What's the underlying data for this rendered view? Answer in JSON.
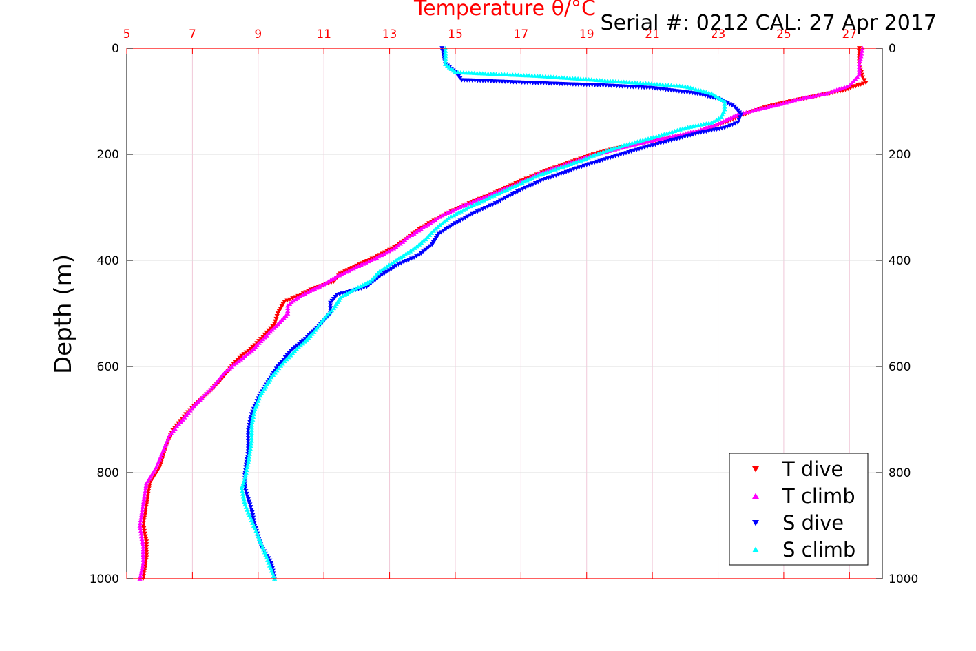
{
  "chart_data": {
    "type": "scatter",
    "title": "Temperature θ/°C",
    "annotation": "Serial #: 0212  CAL: 27 Apr 2017",
    "ylabel": "Depth (m)",
    "xlabel": "Temperature θ/°C",
    "xlim": [
      5,
      28
    ],
    "ylim": [
      0,
      1000
    ],
    "y_reversed": true,
    "x_axis_position": "top",
    "x_axis_color": "#ff0000",
    "xticks": [
      5,
      7,
      9,
      11,
      13,
      15,
      17,
      19,
      21,
      23,
      25,
      27
    ],
    "xtick_labels": [
      "5",
      "7",
      "9",
      "11",
      "13",
      "15",
      "17",
      "19",
      "21",
      "23",
      "25",
      "27"
    ],
    "yticks": [
      0,
      200,
      400,
      600,
      800,
      1000
    ],
    "ytick_labels": [
      "0",
      "200",
      "400",
      "600",
      "800",
      "1000"
    ],
    "grid": true,
    "legend_position": "bottom-right",
    "series": [
      {
        "name": "T dive",
        "color": "#ff0000",
        "marker": "triangle-down",
        "points": [
          [
            27.3,
            0
          ],
          [
            27.3,
            30
          ],
          [
            27.4,
            55
          ],
          [
            27.5,
            65
          ],
          [
            26.8,
            80
          ],
          [
            26.0,
            90
          ],
          [
            25.2,
            100
          ],
          [
            24.5,
            110
          ],
          [
            24.0,
            120
          ],
          [
            23.6,
            130
          ],
          [
            23.0,
            145
          ],
          [
            22.3,
            160
          ],
          [
            21.5,
            170
          ],
          [
            20.6,
            180
          ],
          [
            19.8,
            190
          ],
          [
            19.2,
            200
          ],
          [
            18.5,
            215
          ],
          [
            17.8,
            230
          ],
          [
            17.0,
            250
          ],
          [
            16.3,
            270
          ],
          [
            15.5,
            290
          ],
          [
            14.8,
            310
          ],
          [
            14.2,
            330
          ],
          [
            13.7,
            350
          ],
          [
            13.3,
            370
          ],
          [
            12.7,
            390
          ],
          [
            12.0,
            410
          ],
          [
            11.5,
            425
          ],
          [
            11.3,
            440
          ],
          [
            10.6,
            455
          ],
          [
            10.3,
            465
          ],
          [
            9.8,
            478
          ],
          [
            9.6,
            500
          ],
          [
            9.5,
            520
          ],
          [
            9.2,
            540
          ],
          [
            8.9,
            560
          ],
          [
            8.5,
            580
          ],
          [
            8.2,
            600
          ],
          [
            7.8,
            630
          ],
          [
            7.3,
            660
          ],
          [
            6.8,
            690
          ],
          [
            6.4,
            720
          ],
          [
            6.2,
            750
          ],
          [
            6.0,
            790
          ],
          [
            5.7,
            820
          ],
          [
            5.6,
            860
          ],
          [
            5.5,
            900
          ],
          [
            5.6,
            930
          ],
          [
            5.6,
            960
          ],
          [
            5.5,
            1000
          ]
        ]
      },
      {
        "name": "T climb",
        "color": "#ff00ff",
        "marker": "triangle-up",
        "points": [
          [
            27.4,
            0
          ],
          [
            27.3,
            30
          ],
          [
            27.3,
            50
          ],
          [
            27.0,
            70
          ],
          [
            26.3,
            85
          ],
          [
            25.5,
            95
          ],
          [
            24.9,
            105
          ],
          [
            24.2,
            115
          ],
          [
            23.6,
            125
          ],
          [
            23.1,
            140
          ],
          [
            22.4,
            155
          ],
          [
            21.7,
            165
          ],
          [
            20.9,
            175
          ],
          [
            20.2,
            185
          ],
          [
            19.6,
            195
          ],
          [
            19.0,
            205
          ],
          [
            18.3,
            220
          ],
          [
            17.6,
            235
          ],
          [
            16.9,
            255
          ],
          [
            16.1,
            275
          ],
          [
            15.3,
            295
          ],
          [
            14.6,
            315
          ],
          [
            14.1,
            335
          ],
          [
            13.6,
            355
          ],
          [
            13.2,
            375
          ],
          [
            12.6,
            395
          ],
          [
            11.9,
            415
          ],
          [
            11.4,
            430
          ],
          [
            11.0,
            445
          ],
          [
            10.5,
            460
          ],
          [
            10.2,
            470
          ],
          [
            9.9,
            485
          ],
          [
            9.9,
            500
          ],
          [
            9.6,
            520
          ],
          [
            9.2,
            545
          ],
          [
            8.8,
            570
          ],
          [
            8.4,
            590
          ],
          [
            8.0,
            610
          ],
          [
            7.6,
            640
          ],
          [
            7.1,
            670
          ],
          [
            6.7,
            700
          ],
          [
            6.3,
            730
          ],
          [
            6.1,
            760
          ],
          [
            5.9,
            790
          ],
          [
            5.6,
            820
          ],
          [
            5.5,
            860
          ],
          [
            5.4,
            900
          ],
          [
            5.5,
            940
          ],
          [
            5.5,
            970
          ],
          [
            5.4,
            1000
          ]
        ]
      },
      {
        "name": "S dive",
        "color": "#0000ff",
        "marker": "triangle-down",
        "points": [
          [
            14.6,
            0
          ],
          [
            14.7,
            30
          ],
          [
            15.0,
            45
          ],
          [
            15.2,
            60
          ],
          [
            16.0,
            62
          ],
          [
            17.2,
            65
          ],
          [
            18.5,
            68
          ],
          [
            19.5,
            70
          ],
          [
            21.0,
            75
          ],
          [
            22.3,
            85
          ],
          [
            23.0,
            95
          ],
          [
            23.5,
            110
          ],
          [
            23.7,
            125
          ],
          [
            23.6,
            140
          ],
          [
            23.2,
            150
          ],
          [
            22.4,
            160
          ],
          [
            21.5,
            175
          ],
          [
            20.6,
            190
          ],
          [
            19.8,
            205
          ],
          [
            19.0,
            220
          ],
          [
            18.3,
            235
          ],
          [
            17.6,
            250
          ],
          [
            16.9,
            270
          ],
          [
            16.3,
            290
          ],
          [
            15.6,
            310
          ],
          [
            15.0,
            330
          ],
          [
            14.5,
            350
          ],
          [
            14.3,
            370
          ],
          [
            13.9,
            390
          ],
          [
            13.2,
            410
          ],
          [
            12.7,
            430
          ],
          [
            12.3,
            450
          ],
          [
            11.4,
            465
          ],
          [
            11.2,
            480
          ],
          [
            11.2,
            500
          ],
          [
            10.9,
            520
          ],
          [
            10.5,
            545
          ],
          [
            10.0,
            570
          ],
          [
            9.6,
            600
          ],
          [
            9.3,
            630
          ],
          [
            9.0,
            660
          ],
          [
            8.8,
            690
          ],
          [
            8.7,
            720
          ],
          [
            8.7,
            760
          ],
          [
            8.6,
            800
          ],
          [
            8.6,
            830
          ],
          [
            8.8,
            870
          ],
          [
            8.9,
            900
          ],
          [
            9.1,
            940
          ],
          [
            9.4,
            970
          ],
          [
            9.5,
            1000
          ]
        ]
      },
      {
        "name": "S climb",
        "color": "#00ffff",
        "marker": "triangle-up",
        "points": [
          [
            14.7,
            0
          ],
          [
            14.7,
            30
          ],
          [
            15.0,
            45
          ],
          [
            16.0,
            48
          ],
          [
            17.5,
            52
          ],
          [
            18.9,
            58
          ],
          [
            19.8,
            62
          ],
          [
            20.8,
            66
          ],
          [
            22.0,
            72
          ],
          [
            22.8,
            85
          ],
          [
            23.2,
            100
          ],
          [
            23.2,
            115
          ],
          [
            23.1,
            130
          ],
          [
            22.8,
            140
          ],
          [
            22.0,
            150
          ],
          [
            21.2,
            165
          ],
          [
            20.3,
            180
          ],
          [
            19.5,
            195
          ],
          [
            18.9,
            210
          ],
          [
            18.2,
            225
          ],
          [
            17.5,
            240
          ],
          [
            16.8,
            260
          ],
          [
            16.1,
            280
          ],
          [
            15.4,
            300
          ],
          [
            14.8,
            320
          ],
          [
            14.4,
            340
          ],
          [
            14.1,
            360
          ],
          [
            13.7,
            380
          ],
          [
            13.2,
            400
          ],
          [
            12.7,
            420
          ],
          [
            12.4,
            440
          ],
          [
            11.9,
            455
          ],
          [
            11.5,
            470
          ],
          [
            11.3,
            490
          ],
          [
            11.0,
            510
          ],
          [
            10.7,
            535
          ],
          [
            10.3,
            560
          ],
          [
            9.8,
            590
          ],
          [
            9.4,
            620
          ],
          [
            9.1,
            650
          ],
          [
            8.9,
            680
          ],
          [
            8.8,
            710
          ],
          [
            8.8,
            740
          ],
          [
            8.7,
            780
          ],
          [
            8.6,
            810
          ],
          [
            8.5,
            830
          ],
          [
            8.6,
            860
          ],
          [
            8.8,
            890
          ],
          [
            9.0,
            920
          ],
          [
            9.2,
            950
          ],
          [
            9.5,
            1000
          ]
        ]
      }
    ]
  }
}
